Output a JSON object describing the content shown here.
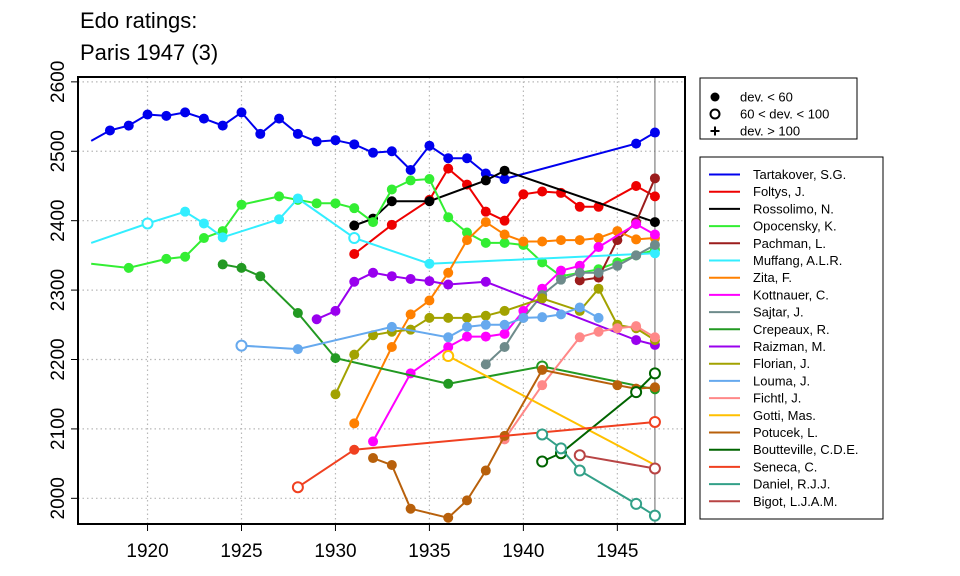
{
  "chart_data": {
    "type": "line",
    "title_lines": [
      "Edo ratings:",
      "Paris 1947 (3)"
    ],
    "xlabel": "",
    "ylabel": "",
    "xlim": [
      1916.3,
      1948.6
    ],
    "ylim": [
      1963,
      2607
    ],
    "x_ticks": [
      1920,
      1925,
      1930,
      1935,
      1940,
      1945
    ],
    "y_ticks": [
      2000,
      2100,
      2200,
      2300,
      2400,
      2500,
      2600
    ],
    "grid": "dotted",
    "tournament_year": 1947,
    "marker_legend": [
      {
        "label": "dev. < 60",
        "marker": "filled"
      },
      {
        "label": "60 < dev. < 100",
        "marker": "open"
      },
      {
        "label": "dev. > 100",
        "marker": "plus"
      }
    ],
    "series": [
      {
        "name": "Tartakover, S.G.",
        "color": "#0000ee",
        "points": [
          [
            1917,
            2515,
            "n"
          ],
          [
            1918,
            2530,
            "f"
          ],
          [
            1919,
            2537,
            "f"
          ],
          [
            1920,
            2553,
            "f"
          ],
          [
            1921,
            2551,
            "f"
          ],
          [
            1922,
            2556,
            "f"
          ],
          [
            1923,
            2547,
            "f"
          ],
          [
            1924,
            2537,
            "f"
          ],
          [
            1925,
            2556,
            "f"
          ],
          [
            1926,
            2525,
            "f"
          ],
          [
            1927,
            2547,
            "f"
          ],
          [
            1928,
            2525,
            "f"
          ],
          [
            1929,
            2514,
            "f"
          ],
          [
            1930,
            2516,
            "f"
          ],
          [
            1931,
            2510,
            "f"
          ],
          [
            1932,
            2498,
            "f"
          ],
          [
            1933,
            2500,
            "f"
          ],
          [
            1934,
            2473,
            "f"
          ],
          [
            1935,
            2508,
            "f"
          ],
          [
            1936,
            2490,
            "f"
          ],
          [
            1937,
            2490,
            "f"
          ],
          [
            1938,
            2468,
            "f"
          ],
          [
            1939,
            2460,
            "f"
          ],
          [
            1946,
            2511,
            "f"
          ],
          [
            1947,
            2527,
            "f"
          ]
        ]
      },
      {
        "name": "Foltys, J.",
        "color": "#ee0000",
        "points": [
          [
            1931,
            2352,
            "f"
          ],
          [
            1933,
            2394,
            "f"
          ],
          [
            1935,
            2430,
            "f"
          ],
          [
            1936,
            2475,
            "f"
          ],
          [
            1937,
            2452,
            "f"
          ],
          [
            1938,
            2413,
            "f"
          ],
          [
            1939,
            2400,
            "f"
          ],
          [
            1940,
            2438,
            "f"
          ],
          [
            1941,
            2442,
            "f"
          ],
          [
            1942,
            2440,
            "f"
          ],
          [
            1943,
            2420,
            "f"
          ],
          [
            1944,
            2420,
            "f"
          ],
          [
            1946,
            2450,
            "f"
          ],
          [
            1947,
            2435,
            "f"
          ]
        ]
      },
      {
        "name": "Rossolimo, N.",
        "color": "#000000",
        "points": [
          [
            1931,
            2393,
            "f"
          ],
          [
            1932,
            2403,
            "f"
          ],
          [
            1933,
            2428,
            "f"
          ],
          [
            1935,
            2428,
            "f"
          ],
          [
            1938,
            2458,
            "f"
          ],
          [
            1939,
            2472,
            "f"
          ],
          [
            1947,
            2398,
            "f"
          ]
        ]
      },
      {
        "name": "Opocensky, K.",
        "color": "#33ee33",
        "points": [
          [
            1917,
            2338,
            "n"
          ],
          [
            1919,
            2332,
            "f"
          ],
          [
            1921,
            2345,
            "f"
          ],
          [
            1922,
            2348,
            "f"
          ],
          [
            1923,
            2375,
            "f"
          ],
          [
            1924,
            2385,
            "f"
          ],
          [
            1925,
            2423,
            "f"
          ],
          [
            1927,
            2435,
            "f"
          ],
          [
            1928,
            2430,
            "f"
          ],
          [
            1929,
            2425,
            "f"
          ],
          [
            1930,
            2425,
            "f"
          ],
          [
            1931,
            2418,
            "f"
          ],
          [
            1932,
            2398,
            "f"
          ],
          [
            1933,
            2445,
            "f"
          ],
          [
            1934,
            2458,
            "f"
          ],
          [
            1935,
            2460,
            "f"
          ],
          [
            1936,
            2405,
            "f"
          ],
          [
            1937,
            2383,
            "f"
          ],
          [
            1938,
            2368,
            "f"
          ],
          [
            1939,
            2368,
            "f"
          ],
          [
            1940,
            2365,
            "f"
          ],
          [
            1941,
            2340,
            "f"
          ],
          [
            1942,
            2320,
            "f"
          ],
          [
            1944,
            2330,
            "f"
          ],
          [
            1945,
            2340,
            "f"
          ],
          [
            1946,
            2350,
            "f"
          ],
          [
            1947,
            2358,
            "f"
          ]
        ]
      },
      {
        "name": "Pachman, L.",
        "color": "#9b1c1c",
        "points": [
          [
            1943,
            2314,
            "f"
          ],
          [
            1944,
            2318,
            "f"
          ],
          [
            1945,
            2372,
            "f"
          ],
          [
            1946,
            2398,
            "f"
          ],
          [
            1947,
            2461,
            "f"
          ]
        ]
      },
      {
        "name": "Muffang, A.L.R.",
        "color": "#33eeff",
        "points": [
          [
            1917,
            2368,
            "n"
          ],
          [
            1920,
            2396,
            "o"
          ],
          [
            1922,
            2413,
            "f"
          ],
          [
            1923,
            2396,
            "f"
          ],
          [
            1924,
            2376,
            "f"
          ],
          [
            1927,
            2402,
            "f"
          ],
          [
            1928,
            2432,
            "f"
          ],
          [
            1931,
            2375,
            "o"
          ],
          [
            1935,
            2338,
            "f"
          ],
          [
            1947,
            2353,
            "f"
          ]
        ]
      },
      {
        "name": "Zita, F.",
        "color": "#ff8000",
        "points": [
          [
            1931,
            2108,
            "f"
          ],
          [
            1933,
            2218,
            "f"
          ],
          [
            1934,
            2265,
            "f"
          ],
          [
            1935,
            2285,
            "f"
          ],
          [
            1936,
            2325,
            "f"
          ],
          [
            1937,
            2372,
            "f"
          ],
          [
            1938,
            2398,
            "f"
          ],
          [
            1939,
            2380,
            "f"
          ],
          [
            1940,
            2370,
            "f"
          ],
          [
            1941,
            2370,
            "f"
          ],
          [
            1942,
            2372,
            "f"
          ],
          [
            1943,
            2372,
            "f"
          ],
          [
            1944,
            2375,
            "f"
          ],
          [
            1945,
            2385,
            "f"
          ],
          [
            1946,
            2373,
            "f"
          ],
          [
            1947,
            2375,
            "f"
          ]
        ]
      },
      {
        "name": "Kottnauer, C.",
        "color": "#ff00ff",
        "points": [
          [
            1932,
            2082,
            "f"
          ],
          [
            1934,
            2180,
            "f"
          ],
          [
            1936,
            2218,
            "f"
          ],
          [
            1937,
            2233,
            "f"
          ],
          [
            1938,
            2233,
            "f"
          ],
          [
            1939,
            2237,
            "f"
          ],
          [
            1940,
            2270,
            "f"
          ],
          [
            1941,
            2302,
            "f"
          ],
          [
            1942,
            2328,
            "f"
          ],
          [
            1943,
            2335,
            "f"
          ],
          [
            1944,
            2362,
            "f"
          ],
          [
            1946,
            2395,
            "f"
          ],
          [
            1947,
            2380,
            "f"
          ]
        ]
      },
      {
        "name": "Sajtar, J.",
        "color": "#6e8b8b",
        "points": [
          [
            1938,
            2193,
            "f"
          ],
          [
            1939,
            2218,
            "f"
          ],
          [
            1940,
            2260,
            "f"
          ],
          [
            1941,
            2293,
            "f"
          ],
          [
            1942,
            2315,
            "f"
          ],
          [
            1943,
            2325,
            "f"
          ],
          [
            1944,
            2325,
            "f"
          ],
          [
            1945,
            2335,
            "f"
          ],
          [
            1946,
            2350,
            "f"
          ],
          [
            1947,
            2365,
            "f"
          ]
        ]
      },
      {
        "name": "Crepeaux, R.",
        "color": "#229922",
        "points": [
          [
            1924,
            2337,
            "f"
          ],
          [
            1925,
            2332,
            "f"
          ],
          [
            1926,
            2320,
            "f"
          ],
          [
            1928,
            2267,
            "f"
          ],
          [
            1930,
            2202,
            "f"
          ],
          [
            1936,
            2165,
            "f"
          ],
          [
            1941,
            2190,
            "o"
          ],
          [
            1947,
            2157,
            "f"
          ]
        ]
      },
      {
        "name": "Raizman, M.",
        "color": "#9900ee",
        "points": [
          [
            1929,
            2258,
            "f"
          ],
          [
            1930,
            2270,
            "f"
          ],
          [
            1931,
            2312,
            "f"
          ],
          [
            1932,
            2325,
            "f"
          ],
          [
            1933,
            2320,
            "f"
          ],
          [
            1934,
            2316,
            "f"
          ],
          [
            1935,
            2313,
            "f"
          ],
          [
            1936,
            2308,
            "f"
          ],
          [
            1938,
            2312,
            "f"
          ],
          [
            1946,
            2228,
            "f"
          ],
          [
            1947,
            2221,
            "f"
          ]
        ]
      },
      {
        "name": "Florian, J.",
        "color": "#a2a200",
        "points": [
          [
            1930,
            2150,
            "f"
          ],
          [
            1931,
            2207,
            "f"
          ],
          [
            1932,
            2235,
            "f"
          ],
          [
            1933,
            2240,
            "f"
          ],
          [
            1934,
            2243,
            "f"
          ],
          [
            1935,
            2260,
            "f"
          ],
          [
            1936,
            2260,
            "f"
          ],
          [
            1937,
            2260,
            "f"
          ],
          [
            1938,
            2263,
            "f"
          ],
          [
            1939,
            2270,
            "f"
          ],
          [
            1941,
            2288,
            "f"
          ],
          [
            1943,
            2270,
            "f"
          ],
          [
            1944,
            2302,
            "f"
          ],
          [
            1945,
            2250,
            "f"
          ],
          [
            1946,
            2245,
            "f"
          ],
          [
            1947,
            2228,
            "f"
          ]
        ]
      },
      {
        "name": "Louma, J.",
        "color": "#66a9ee",
        "points": [
          [
            1925,
            2220,
            "o"
          ],
          [
            1928,
            2215,
            "f"
          ],
          [
            1933,
            2247,
            "f"
          ],
          [
            1936,
            2232,
            "f"
          ],
          [
            1937,
            2247,
            "f"
          ],
          [
            1938,
            2250,
            "f"
          ],
          [
            1939,
            2250,
            "f"
          ],
          [
            1940,
            2260,
            "f"
          ],
          [
            1941,
            2261,
            "f"
          ],
          [
            1942,
            2265,
            "f"
          ],
          [
            1943,
            2275,
            "f"
          ],
          [
            1944,
            2260,
            "f"
          ]
        ]
      },
      {
        "name": "Fichtl, J.",
        "color": "#ff8888",
        "points": [
          [
            1939,
            2085,
            "f"
          ],
          [
            1941,
            2163,
            "f"
          ],
          [
            1943,
            2232,
            "f"
          ],
          [
            1944,
            2240,
            "f"
          ],
          [
            1945,
            2245,
            "f"
          ],
          [
            1946,
            2248,
            "f"
          ],
          [
            1947,
            2232,
            "f"
          ]
        ]
      },
      {
        "name": "Gotti, Mas.",
        "color": "#ffc000",
        "points": [
          [
            1936,
            2205,
            "o"
          ],
          [
            1947,
            2048,
            "n"
          ]
        ]
      },
      {
        "name": "Potucek, L.",
        "color": "#b8600b",
        "points": [
          [
            1932,
            2058,
            "f"
          ],
          [
            1933,
            2048,
            "f"
          ],
          [
            1934,
            1985,
            "f"
          ],
          [
            1936,
            1972,
            "f"
          ],
          [
            1937,
            1997,
            "f"
          ],
          [
            1938,
            2040,
            "f"
          ],
          [
            1939,
            2090,
            "f"
          ],
          [
            1941,
            2185,
            "f"
          ],
          [
            1945,
            2163,
            "f"
          ],
          [
            1946,
            2158,
            "f"
          ],
          [
            1947,
            2160,
            "f"
          ]
        ]
      },
      {
        "name": "Boutteville, C.D.E.",
        "color": "#006400",
        "points": [
          [
            1941,
            2053,
            "o"
          ],
          [
            1942,
            2065,
            "o"
          ],
          [
            1946,
            2153,
            "o"
          ],
          [
            1947,
            2180,
            "o"
          ]
        ]
      },
      {
        "name": "Seneca, C.",
        "color": "#f04020",
        "points": [
          [
            1928,
            2016,
            "o"
          ],
          [
            1931,
            2070,
            "f"
          ],
          [
            1947,
            2110,
            "o"
          ]
        ]
      },
      {
        "name": "Daniel, R.J.J.",
        "color": "#33a088",
        "points": [
          [
            1941,
            2092,
            "o"
          ],
          [
            1942,
            2072,
            "o"
          ],
          [
            1943,
            2040,
            "o"
          ],
          [
            1946,
            1992,
            "o"
          ],
          [
            1947,
            1975,
            "o"
          ]
        ]
      },
      {
        "name": "Bigot, L.J.A.M.",
        "color": "#b84444",
        "points": [
          [
            1943,
            2062,
            "o"
          ],
          [
            1947,
            2043,
            "o"
          ]
        ]
      }
    ]
  }
}
